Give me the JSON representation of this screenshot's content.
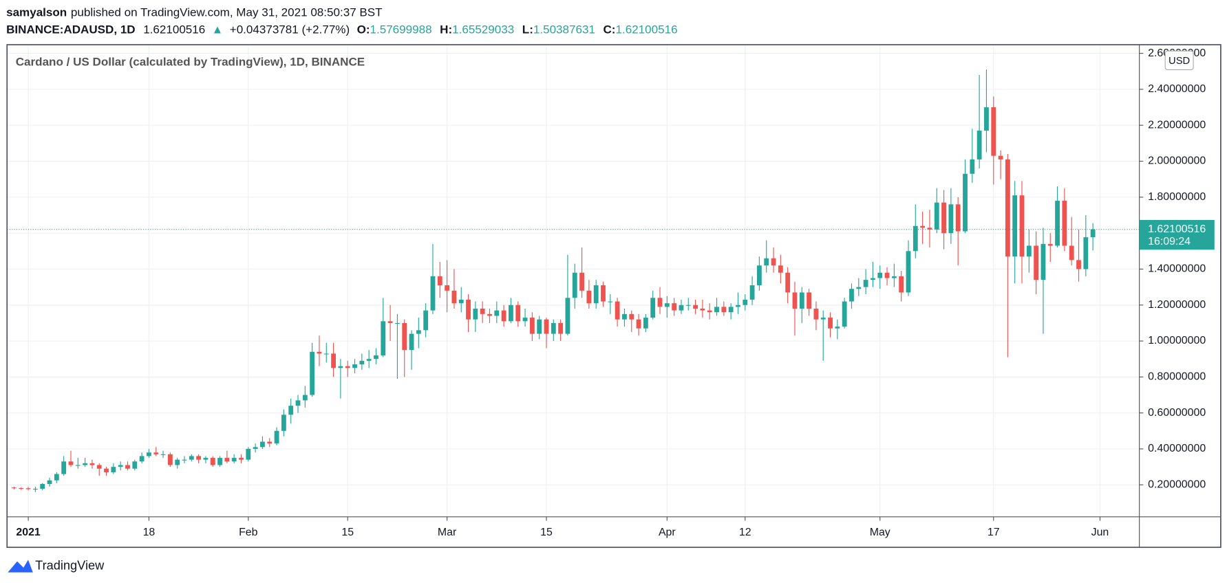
{
  "header": {
    "author": "samyalson",
    "published": "published on TradingView.com, May 31, 2021 08:50:37 BST",
    "symbol": "BINANCE:ADAUSD, 1D",
    "change": "+0.04373781 (+2.77%)",
    "ohlc_labels": [
      "O:",
      "H:",
      "L:",
      "C:"
    ]
  },
  "footer": {
    "brand": "TradingView"
  },
  "chart_data": {
    "type": "candlestick",
    "title": "Cardano / US Dollar (calculated by TradingView), 1D, BINANCE",
    "currency": "USD",
    "countdown": "16:09:24",
    "up_color": "#26a69a",
    "down_color": "#ef5350",
    "grid": true,
    "ylim": [
      0.022,
      2.648
    ],
    "yticks": [
      {
        "value": 0.2,
        "label": "0.20000000"
      },
      {
        "value": 0.4,
        "label": "0.40000000"
      },
      {
        "value": 0.6,
        "label": "0.60000000"
      },
      {
        "value": 0.8,
        "label": "0.80000000"
      },
      {
        "value": 1.0,
        "label": "1.00000000"
      },
      {
        "value": 1.2,
        "label": "1.20000000"
      },
      {
        "value": 1.4,
        "label": "1.40000000"
      },
      {
        "value": 1.6,
        "label": "1.60000000"
      },
      {
        "value": 1.8,
        "label": "1.80000000"
      },
      {
        "value": 2.0,
        "label": "2.00000000"
      },
      {
        "value": 2.2,
        "label": "2.20000000"
      },
      {
        "value": 2.4,
        "label": "2.40000000"
      },
      {
        "value": 2.6,
        "label": "2.60000000"
      }
    ],
    "categories": [
      null,
      null,
      "2021",
      null,
      null,
      null,
      null,
      null,
      null,
      null,
      null,
      null,
      null,
      null,
      null,
      null,
      null,
      null,
      null,
      "18",
      null,
      null,
      null,
      null,
      null,
      null,
      null,
      null,
      null,
      null,
      null,
      null,
      null,
      "Feb",
      null,
      null,
      null,
      null,
      null,
      null,
      null,
      null,
      null,
      null,
      null,
      null,
      null,
      "15",
      null,
      null,
      null,
      null,
      null,
      null,
      null,
      null,
      null,
      null,
      null,
      null,
      null,
      "Mar",
      null,
      null,
      null,
      null,
      null,
      null,
      null,
      null,
      null,
      null,
      null,
      null,
      null,
      "15",
      null,
      null,
      null,
      null,
      null,
      null,
      null,
      null,
      null,
      null,
      null,
      null,
      null,
      null,
      null,
      null,
      "Apr",
      null,
      null,
      null,
      null,
      null,
      null,
      null,
      null,
      null,
      null,
      "12",
      null,
      null,
      null,
      null,
      null,
      null,
      null,
      null,
      null,
      null,
      null,
      null,
      null,
      null,
      null,
      null,
      null,
      null,
      "May",
      null,
      null,
      null,
      null,
      null,
      null,
      null,
      null,
      null,
      null,
      null,
      null,
      null,
      null,
      null,
      "17",
      null,
      null,
      null,
      null,
      null,
      null,
      null,
      null,
      null,
      null,
      null,
      null,
      null,
      null,
      "Jun"
    ],
    "ohlc": [
      [
        0.185,
        0.19,
        0.175,
        0.182
      ],
      [
        0.182,
        0.186,
        0.172,
        0.181
      ],
      [
        0.181,
        0.188,
        0.17,
        0.176
      ],
      [
        0.176,
        0.19,
        0.16,
        0.178
      ],
      [
        0.178,
        0.21,
        0.17,
        0.205
      ],
      [
        0.205,
        0.24,
        0.19,
        0.225
      ],
      [
        0.225,
        0.27,
        0.21,
        0.26
      ],
      [
        0.26,
        0.36,
        0.25,
        0.33
      ],
      [
        0.33,
        0.39,
        0.3,
        0.31
      ],
      [
        0.31,
        0.35,
        0.29,
        0.31
      ],
      [
        0.31,
        0.35,
        0.3,
        0.32
      ],
      [
        0.32,
        0.34,
        0.29,
        0.31
      ],
      [
        0.31,
        0.32,
        0.25,
        0.29
      ],
      [
        0.29,
        0.3,
        0.25,
        0.27
      ],
      [
        0.27,
        0.32,
        0.26,
        0.3
      ],
      [
        0.3,
        0.33,
        0.28,
        0.31
      ],
      [
        0.31,
        0.33,
        0.28,
        0.29
      ],
      [
        0.29,
        0.34,
        0.28,
        0.33
      ],
      [
        0.33,
        0.38,
        0.32,
        0.36
      ],
      [
        0.36,
        0.4,
        0.35,
        0.38
      ],
      [
        0.38,
        0.41,
        0.36,
        0.37
      ],
      [
        0.37,
        0.39,
        0.35,
        0.37
      ],
      [
        0.37,
        0.38,
        0.3,
        0.31
      ],
      [
        0.31,
        0.35,
        0.29,
        0.34
      ],
      [
        0.34,
        0.36,
        0.32,
        0.34
      ],
      [
        0.34,
        0.37,
        0.33,
        0.36
      ],
      [
        0.36,
        0.37,
        0.32,
        0.34
      ],
      [
        0.34,
        0.36,
        0.32,
        0.35
      ],
      [
        0.35,
        0.36,
        0.3,
        0.31
      ],
      [
        0.31,
        0.36,
        0.3,
        0.35
      ],
      [
        0.35,
        0.39,
        0.32,
        0.33
      ],
      [
        0.33,
        0.37,
        0.32,
        0.35
      ],
      [
        0.35,
        0.37,
        0.32,
        0.34
      ],
      [
        0.34,
        0.41,
        0.33,
        0.4
      ],
      [
        0.4,
        0.43,
        0.38,
        0.41
      ],
      [
        0.41,
        0.47,
        0.4,
        0.44
      ],
      [
        0.44,
        0.46,
        0.41,
        0.43
      ],
      [
        0.43,
        0.52,
        0.42,
        0.5
      ],
      [
        0.5,
        0.62,
        0.47,
        0.59
      ],
      [
        0.59,
        0.68,
        0.54,
        0.64
      ],
      [
        0.64,
        0.7,
        0.6,
        0.67
      ],
      [
        0.67,
        0.75,
        0.63,
        0.7
      ],
      [
        0.7,
        0.99,
        0.69,
        0.94
      ],
      [
        0.94,
        1.03,
        0.86,
        0.93
      ],
      [
        0.93,
        0.99,
        0.88,
        0.93
      ],
      [
        0.93,
        0.99,
        0.8,
        0.85
      ],
      [
        0.85,
        0.9,
        0.68,
        0.86
      ],
      [
        0.86,
        0.89,
        0.8,
        0.85
      ],
      [
        0.85,
        0.9,
        0.82,
        0.87
      ],
      [
        0.87,
        0.93,
        0.84,
        0.89
      ],
      [
        0.89,
        0.95,
        0.85,
        0.9
      ],
      [
        0.9,
        0.96,
        0.87,
        0.92
      ],
      [
        0.92,
        1.24,
        0.91,
        1.11
      ],
      [
        1.11,
        1.2,
        1.0,
        1.1
      ],
      [
        1.1,
        1.15,
        0.79,
        1.1
      ],
      [
        1.1,
        1.12,
        0.8,
        0.95
      ],
      [
        0.95,
        1.06,
        0.84,
        1.04
      ],
      [
        1.04,
        1.13,
        0.96,
        1.06
      ],
      [
        1.06,
        1.21,
        1.02,
        1.17
      ],
      [
        1.17,
        1.54,
        1.15,
        1.36
      ],
      [
        1.36,
        1.44,
        1.24,
        1.31
      ],
      [
        1.31,
        1.45,
        1.16,
        1.28
      ],
      [
        1.28,
        1.4,
        1.18,
        1.21
      ],
      [
        1.21,
        1.3,
        1.16,
        1.23
      ],
      [
        1.23,
        1.26,
        1.05,
        1.12
      ],
      [
        1.12,
        1.22,
        1.05,
        1.18
      ],
      [
        1.18,
        1.22,
        1.1,
        1.15
      ],
      [
        1.15,
        1.18,
        1.1,
        1.14
      ],
      [
        1.14,
        1.22,
        1.1,
        1.17
      ],
      [
        1.17,
        1.2,
        1.08,
        1.11
      ],
      [
        1.11,
        1.24,
        1.1,
        1.2
      ],
      [
        1.2,
        1.22,
        1.08,
        1.11
      ],
      [
        1.11,
        1.18,
        1.08,
        1.13
      ],
      [
        1.13,
        1.16,
        1.0,
        1.04
      ],
      [
        1.04,
        1.14,
        1.01,
        1.12
      ],
      [
        1.12,
        1.13,
        0.96,
        1.04
      ],
      [
        1.04,
        1.12,
        1.0,
        1.1
      ],
      [
        1.1,
        1.12,
        1.0,
        1.04
      ],
      [
        1.04,
        1.48,
        1.03,
        1.24
      ],
      [
        1.24,
        1.43,
        1.18,
        1.38
      ],
      [
        1.38,
        1.52,
        1.24,
        1.28
      ],
      [
        1.28,
        1.34,
        1.18,
        1.21
      ],
      [
        1.21,
        1.34,
        1.18,
        1.31
      ],
      [
        1.31,
        1.33,
        1.19,
        1.22
      ],
      [
        1.22,
        1.26,
        1.15,
        1.22
      ],
      [
        1.22,
        1.24,
        1.08,
        1.12
      ],
      [
        1.12,
        1.18,
        1.08,
        1.15
      ],
      [
        1.15,
        1.17,
        1.05,
        1.12
      ],
      [
        1.12,
        1.15,
        1.03,
        1.07
      ],
      [
        1.07,
        1.15,
        1.05,
        1.13
      ],
      [
        1.13,
        1.28,
        1.12,
        1.24
      ],
      [
        1.24,
        1.3,
        1.15,
        1.19
      ],
      [
        1.19,
        1.25,
        1.13,
        1.21
      ],
      [
        1.21,
        1.24,
        1.14,
        1.17
      ],
      [
        1.17,
        1.23,
        1.15,
        1.2
      ],
      [
        1.2,
        1.24,
        1.17,
        1.2
      ],
      [
        1.2,
        1.23,
        1.15,
        1.18
      ],
      [
        1.18,
        1.23,
        1.13,
        1.17
      ],
      [
        1.17,
        1.21,
        1.12,
        1.16
      ],
      [
        1.16,
        1.24,
        1.14,
        1.19
      ],
      [
        1.19,
        1.22,
        1.14,
        1.16
      ],
      [
        1.16,
        1.21,
        1.12,
        1.19
      ],
      [
        1.19,
        1.27,
        1.15,
        1.2
      ],
      [
        1.2,
        1.26,
        1.17,
        1.23
      ],
      [
        1.23,
        1.36,
        1.2,
        1.31
      ],
      [
        1.31,
        1.47,
        1.28,
        1.42
      ],
      [
        1.42,
        1.56,
        1.38,
        1.46
      ],
      [
        1.46,
        1.52,
        1.38,
        1.42
      ],
      [
        1.42,
        1.48,
        1.32,
        1.38
      ],
      [
        1.38,
        1.41,
        1.21,
        1.27
      ],
      [
        1.27,
        1.33,
        1.03,
        1.18
      ],
      [
        1.18,
        1.3,
        1.1,
        1.27
      ],
      [
        1.27,
        1.29,
        1.14,
        1.18
      ],
      [
        1.18,
        1.22,
        1.06,
        1.12
      ],
      [
        1.12,
        1.17,
        0.89,
        1.13
      ],
      [
        1.13,
        1.16,
        1.02,
        1.07
      ],
      [
        1.07,
        1.12,
        1.01,
        1.08
      ],
      [
        1.08,
        1.24,
        1.07,
        1.22
      ],
      [
        1.22,
        1.32,
        1.18,
        1.29
      ],
      [
        1.29,
        1.35,
        1.25,
        1.3
      ],
      [
        1.3,
        1.4,
        1.26,
        1.34
      ],
      [
        1.34,
        1.44,
        1.3,
        1.35
      ],
      [
        1.35,
        1.42,
        1.29,
        1.38
      ],
      [
        1.38,
        1.41,
        1.31,
        1.35
      ],
      [
        1.35,
        1.43,
        1.3,
        1.36
      ],
      [
        1.36,
        1.39,
        1.22,
        1.27
      ],
      [
        1.27,
        1.56,
        1.25,
        1.5
      ],
      [
        1.5,
        1.76,
        1.46,
        1.64
      ],
      [
        1.64,
        1.72,
        1.54,
        1.63
      ],
      [
        1.63,
        1.73,
        1.52,
        1.62
      ],
      [
        1.62,
        1.85,
        1.6,
        1.77
      ],
      [
        1.77,
        1.84,
        1.51,
        1.6
      ],
      [
        1.6,
        1.85,
        1.54,
        1.76
      ],
      [
        1.76,
        1.8,
        1.42,
        1.61
      ],
      [
        1.61,
        2.01,
        1.6,
        1.93
      ],
      [
        1.93,
        2.18,
        1.88,
        2.01
      ],
      [
        2.01,
        2.48,
        1.96,
        2.17
      ],
      [
        2.17,
        2.51,
        2.05,
        2.3
      ],
      [
        2.3,
        2.36,
        1.87,
        2.03
      ],
      [
        2.03,
        2.06,
        1.9,
        2.01
      ],
      [
        2.01,
        2.04,
        0.91,
        1.47
      ],
      [
        1.47,
        1.89,
        1.32,
        1.81
      ],
      [
        1.81,
        1.89,
        1.32,
        1.47
      ],
      [
        1.47,
        1.62,
        1.38,
        1.53
      ],
      [
        1.53,
        1.61,
        1.26,
        1.34
      ],
      [
        1.34,
        1.63,
        1.04,
        1.54
      ],
      [
        1.54,
        1.6,
        1.44,
        1.53
      ],
      [
        1.53,
        1.86,
        1.52,
        1.78
      ],
      [
        1.78,
        1.85,
        1.5,
        1.53
      ],
      [
        1.53,
        1.69,
        1.42,
        1.45
      ],
      [
        1.45,
        1.62,
        1.33,
        1.4
      ],
      [
        1.4,
        1.7,
        1.36,
        1.57726735
      ],
      [
        1.57699988,
        1.65529033,
        1.50387631,
        1.62100516
      ],
      null
    ]
  }
}
